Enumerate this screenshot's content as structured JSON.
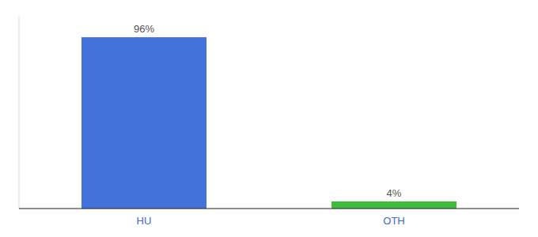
{
  "chart_data": {
    "type": "bar",
    "categories": [
      "HU",
      "OTH"
    ],
    "values": [
      96,
      4
    ],
    "value_labels": [
      "96%",
      "4%"
    ],
    "colors": [
      "#4472db",
      "#3dbb3d"
    ],
    "ylim": [
      0,
      108
    ],
    "data_labels": true,
    "tick_labels": "x",
    "grid": false
  }
}
